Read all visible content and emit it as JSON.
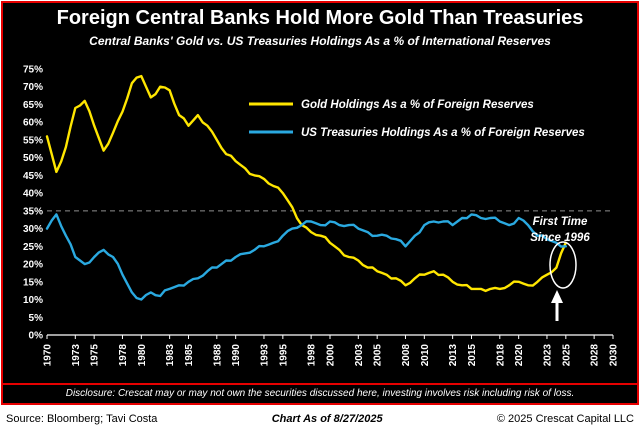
{
  "disclosure": "Disclosure: Crescat may or may not own the securities discussed here, investing involves risk including risk of loss.",
  "footer": {
    "source": "Source: Bloomberg; Tavi Costa",
    "as_of": "Chart As of 8/27/2025",
    "copyright": "© 2025 Crescat Capital LLC"
  },
  "chart_data": {
    "type": "line",
    "title": "Foreign Central Banks Hold More Gold Than Treasuries",
    "subtitle": "Central Banks' Gold vs. US Treasuries Holdings As a % of International Reserves",
    "xlabel": "",
    "ylabel": "",
    "xlim": [
      1970,
      2030
    ],
    "ylim": [
      0,
      75
    ],
    "yticks": [
      0,
      5,
      10,
      15,
      20,
      25,
      30,
      35,
      40,
      45,
      50,
      55,
      60,
      65,
      70,
      75
    ],
    "xticks": [
      1970,
      1973,
      1975,
      1978,
      1980,
      1983,
      1985,
      1988,
      1990,
      1993,
      1995,
      1998,
      2000,
      2003,
      2005,
      2008,
      2010,
      2013,
      2015,
      2018,
      2020,
      2023,
      2025,
      2028,
      2030
    ],
    "dashed_gridline_y": 35,
    "legend_position": "upper-center-inside",
    "grid": false,
    "background": "#000000",
    "border_color": "#e60000",
    "years": [
      1970,
      1971,
      1972,
      1973,
      1974,
      1975,
      1976,
      1977,
      1978,
      1979,
      1980,
      1981,
      1982,
      1983,
      1984,
      1985,
      1986,
      1987,
      1988,
      1989,
      1990,
      1991,
      1992,
      1993,
      1994,
      1995,
      1996,
      1997,
      1998,
      1999,
      2000,
      2001,
      2002,
      2003,
      2004,
      2005,
      2006,
      2007,
      2008,
      2009,
      2010,
      2011,
      2012,
      2013,
      2014,
      2015,
      2016,
      2017,
      2018,
      2019,
      2020,
      2021,
      2022,
      2023,
      2024,
      2025
    ],
    "series": [
      {
        "name": "Gold Holdings As a % of Foreign Reserves",
        "color": "#ffe600",
        "values": [
          56,
          46,
          53,
          64,
          66,
          59,
          52,
          57,
          63,
          71,
          73,
          67,
          70,
          69,
          62,
          59,
          62,
          59,
          55,
          51,
          49,
          47,
          45,
          44,
          42,
          40,
          36,
          31,
          29,
          28,
          26,
          24,
          22,
          21,
          19,
          18,
          17,
          16,
          14,
          16,
          17,
          18,
          17,
          15,
          14,
          13,
          13,
          13,
          13,
          14,
          15,
          14,
          15,
          17,
          19,
          26
        ]
      },
      {
        "name": "US Treasuries Holdings As a % of Foreign Reserves",
        "color": "#2aa9e0",
        "values": [
          30,
          34,
          28,
          22,
          20,
          22,
          24,
          22,
          17,
          12,
          10,
          12,
          11,
          13,
          14,
          15,
          16,
          18,
          19,
          21,
          22,
          23,
          24,
          25,
          26,
          28,
          30,
          31,
          32,
          31,
          32,
          31,
          31,
          30,
          29,
          28,
          28,
          27,
          25,
          28,
          31,
          32,
          32,
          31,
          33,
          34,
          33,
          33,
          32,
          31,
          33,
          31,
          28,
          27,
          26,
          25
        ]
      }
    ],
    "annotation": {
      "text": [
        "First Time",
        "Since 1996"
      ],
      "target_year": 2025,
      "target_value": 25
    }
  }
}
